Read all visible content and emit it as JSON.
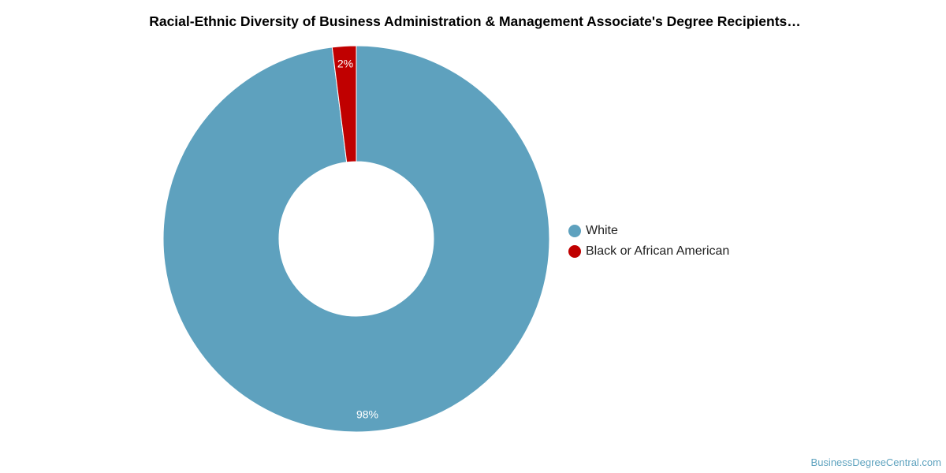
{
  "chart_data": {
    "type": "pie",
    "title": "Racial-Ethnic Diversity of Business Administration & Management Associate's Degree Recipients…",
    "donut": true,
    "slices": [
      {
        "name": "White",
        "value": 98,
        "label": "98%",
        "color": "#5ea1be"
      },
      {
        "name": "Black or African American",
        "value": 2,
        "label": "2%",
        "color": "#c00000"
      }
    ],
    "legend_position": "right"
  },
  "legend": {
    "items": [
      {
        "label": "White",
        "color": "#5ea1be"
      },
      {
        "label": "Black or African American",
        "color": "#c00000"
      }
    ]
  },
  "source": {
    "label": "BusinessDegreeCentral.com"
  }
}
